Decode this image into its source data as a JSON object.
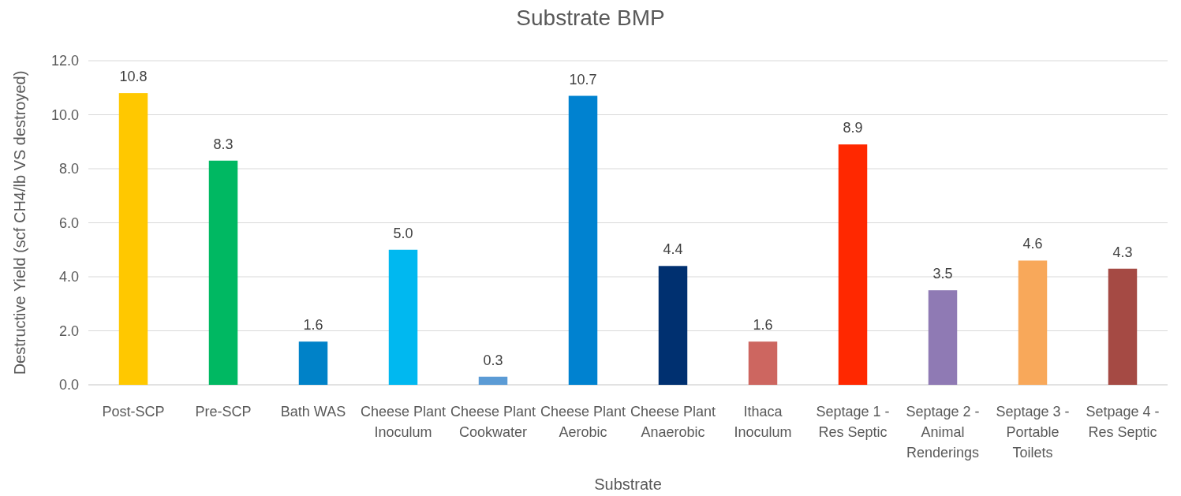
{
  "chart_data": {
    "type": "bar",
    "title": "Substrate BMP",
    "xlabel": "Substrate",
    "ylabel": "Destructive Yield (scf CH4/lb VS destroyed)",
    "categories": [
      "Post-SCP",
      "Pre-SCP",
      "Bath WAS",
      "Cheese Plant Inoculum",
      "Cheese Plant Cookwater",
      "Cheese Plant Aerobic",
      "Cheese Plant Anaerobic",
      "Ithaca Inoculum",
      "Septage 1 - Res Septic",
      "Septage 2 - Animal Renderings",
      "Septage 3 - Portable Toilets",
      "Setpage 4 - Res Septic"
    ],
    "values": [
      10.8,
      8.3,
      1.6,
      5.0,
      0.3,
      10.7,
      4.4,
      1.6,
      8.9,
      3.5,
      4.6,
      4.3
    ],
    "value_labels": [
      "10.8",
      "8.3",
      "1.6",
      "5.0",
      "0.3",
      "10.7",
      "4.4",
      "1.6",
      "8.9",
      "3.5",
      "4.6",
      "4.3"
    ],
    "colors": [
      "#ffc800",
      "#00b862",
      "#0082c8",
      "#00b8f0",
      "#5b9bd5",
      "#0082d0",
      "#003070",
      "#cd6660",
      "#ff2800",
      "#8f7ab4",
      "#f8a85a",
      "#a54a44"
    ],
    "ylim": [
      0,
      12
    ],
    "yticks": [
      {
        "value": 0,
        "label": "0.0"
      },
      {
        "value": 2,
        "label": "2.0"
      },
      {
        "value": 4,
        "label": "4.0"
      },
      {
        "value": 6,
        "label": "6.0"
      },
      {
        "value": 8,
        "label": "8.0"
      },
      {
        "value": 10,
        "label": "10.0"
      },
      {
        "value": 12,
        "label": "12.0"
      }
    ],
    "grid": "y"
  }
}
